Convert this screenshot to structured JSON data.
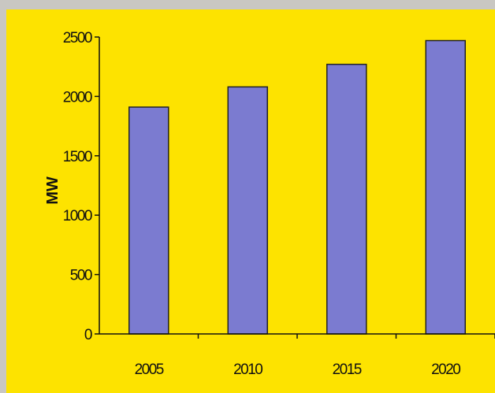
{
  "chart_data": {
    "type": "bar",
    "categories": [
      "2005",
      "2010",
      "2015",
      "2020"
    ],
    "values": [
      1910,
      2080,
      2270,
      2470
    ],
    "ylabel": "MW",
    "xlabel": "",
    "ylim": [
      0,
      2500
    ],
    "yticks": [
      "0",
      "500",
      "1000",
      "1500",
      "2000",
      "2500"
    ],
    "grid": false,
    "bar_color": "#7b7bd0",
    "background_color": "#fde300"
  }
}
